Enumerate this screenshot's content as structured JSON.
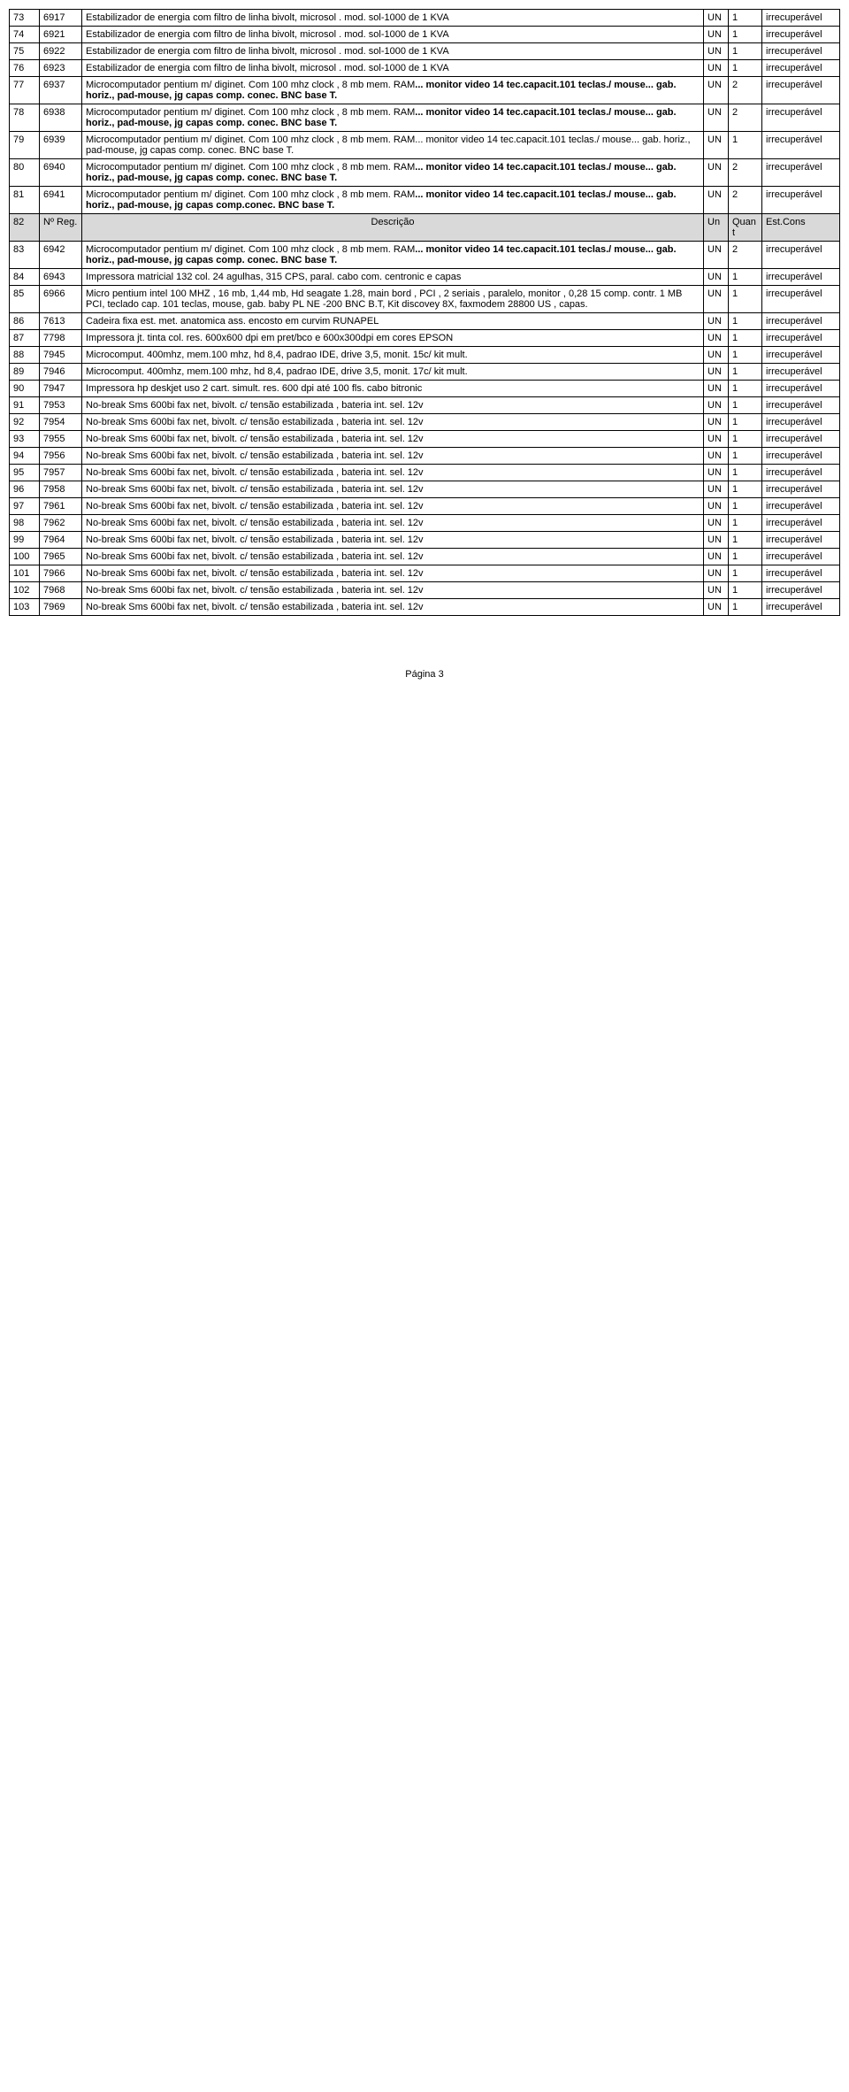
{
  "colors": {
    "header_bg": "#d9d9d9",
    "border": "#000000",
    "text": "#000000",
    "bg": "#ffffff"
  },
  "header": {
    "c1": "82",
    "c2": "Nº Reg.",
    "c3": "Descrição",
    "c4": "Un",
    "c5": "Quant",
    "c6": "Est.Cons"
  },
  "rows": [
    {
      "n": "73",
      "reg": "6917",
      "desc": "Estabilizador de energia com filtro de linha bivolt, microsol . mod. sol-1000 de 1 KVA",
      "un": "UN",
      "qt": "1",
      "est": "irrecuperável"
    },
    {
      "n": "74",
      "reg": "6921",
      "desc": "Estabilizador de energia com filtro de linha bivolt, microsol . mod. sol-1000 de 1 KVA",
      "un": "UN",
      "qt": "1",
      "est": "irrecuperável"
    },
    {
      "n": "75",
      "reg": "6922",
      "desc": "Estabilizador de energia com filtro de linha bivolt, microsol . mod. sol-1000 de 1 KVA",
      "un": "UN",
      "qt": "1",
      "est": "irrecuperável"
    },
    {
      "n": "76",
      "reg": "6923",
      "desc": "Estabilizador de energia com filtro de linha bivolt, microsol . mod. sol-1000 de 1 KVA",
      "un": "UN",
      "qt": "1",
      "est": "irrecuperável"
    },
    {
      "n": "77",
      "reg": "6937",
      "desc_plain": "Microcomputador pentium m/ diginet. Com 100 mhz clock , 8 mb mem. RAM",
      "desc_bold": "... monitor video 14 tec.capacit.101 teclas./ mouse... gab. horiz., pad-mouse, jg capas comp. conec. BNC base T.",
      "un": "UN",
      "qt": "2",
      "est": "irrecuperável"
    },
    {
      "n": "78",
      "reg": "6938",
      "desc_plain": "Microcomputador pentium m/ diginet. Com 100 mhz clock , 8 mb mem. RAM",
      "desc_bold": "... monitor video 14 tec.capacit.101 teclas./ mouse... gab. horiz., pad-mouse, jg capas comp. conec. BNC base T.",
      "un": "UN",
      "qt": "2",
      "est": "irrecuperável"
    },
    {
      "n": "79",
      "reg": "6939",
      "desc_plain": "Microcomputador pentium m/ diginet. Com 100 mhz clock , 8 mb mem. RAM... monitor video 14 tec.capacit.101 teclas./ mouse... gab. horiz., pad-mouse, jg capas comp. conec. BNC base T.",
      "un": "UN",
      "qt": "1",
      "est": "irrecuperável"
    },
    {
      "n": "80",
      "reg": "6940",
      "desc_plain": "Microcomputador pentium m/ diginet. Com 100 mhz clock , 8 mb mem. RAM",
      "desc_bold": "... monitor video 14 tec.capacit.101 teclas./ mouse... gab. horiz., pad-mouse, jg capas comp. conec. BNC base T.",
      "un": "UN",
      "qt": "2",
      "est": "irrecuperável"
    },
    {
      "n": "81",
      "reg": "6941",
      "desc_plain": "Microcomputador pentium m/ diginet. Com 100 mhz  clock , 8 mb mem. RAM",
      "desc_bold": "... monitor video 14 tec.capacit.101 teclas./ mouse... gab. horiz., pad-mouse, jg capas comp.conec. BNC base T.",
      "un": "UN",
      "qt": "2",
      "est": "irrecuperável"
    },
    {
      "header": true
    },
    {
      "n": "83",
      "reg": "6942",
      "desc_plain": "Microcomputador pentium m/ diginet. Com 100 mhz clock , 8 mb mem. RAM",
      "desc_bold": "... monitor video 14 tec.capacit.101 teclas./ mouse... gab. horiz., pad-mouse, jg capas comp. conec. BNC base T.",
      "un": "UN",
      "qt": "2",
      "est": "irrecuperável"
    },
    {
      "n": "84",
      "reg": "6943",
      "desc": "Impressora matricial 132 col. 24 agulhas, 315 CPS,  paral. cabo com. centronic e capas",
      "un": "UN",
      "qt": "1",
      "est": "irrecuperável"
    },
    {
      "n": "85",
      "reg": "6966",
      "desc": "Micro pentium intel 100 MHZ , 16 mb, 1,44 mb, Hd seagate 1.28, main bord , PCI , 2 seriais , paralelo, monitor , 0,28 15 comp. contr. 1 MB PCI, teclado cap. 101 teclas, mouse, gab. baby PL NE -200 BNC B.T, Kit discovey 8X, faxmodem 28800 US , capas.",
      "un": "UN",
      "qt": "1",
      "est": "irrecuperável"
    },
    {
      "n": "86",
      "reg": "7613",
      "desc": "Cadeira fixa est. met. anatomica ass. encosto em curvim RUNAPEL",
      "un": "UN",
      "qt": "1",
      "est": "irrecuperável"
    },
    {
      "n": "87",
      "reg": "7798",
      "desc": "Impressora jt. tinta col. res. 600x600 dpi em pret/bco e 600x300dpi em cores EPSON",
      "un": "UN",
      "qt": "1",
      "est": "irrecuperável"
    },
    {
      "n": "88",
      "reg": "7945",
      "desc": "Microcomput. 400mhz, mem.100 mhz, hd 8,4, padrao IDE, drive 3,5, monit. 15c/ kit mult.",
      "un": "UN",
      "qt": "1",
      "est": "irrecuperável"
    },
    {
      "n": "89",
      "reg": "7946",
      "desc": "Microcomput. 400mhz, mem.100 mhz, hd 8,4, padrao IDE, drive 3,5, monit. 17c/ kit mult.",
      "un": "UN",
      "qt": "1",
      "est": "irrecuperável"
    },
    {
      "n": "90",
      "reg": "7947",
      "desc": "Impressora hp deskjet uso 2 cart. simult. res. 600 dpi até 100 fls. cabo bitronic",
      "un": "UN",
      "qt": "1",
      "est": "irrecuperável"
    },
    {
      "n": "91",
      "reg": "7953",
      "desc": "No-break Sms 600bi fax net, bivolt.  c/ tensão estabilizada , bateria int. sel. 12v",
      "un": "UN",
      "qt": "1",
      "est": "irrecuperável"
    },
    {
      "n": "92",
      "reg": "7954",
      "desc": "No-break Sms 600bi fax net, bivolt.  c/ tensão estabilizada , bateria int. sel. 12v",
      "un": "UN",
      "qt": "1",
      "est": "irrecuperável"
    },
    {
      "n": "93",
      "reg": "7955",
      "desc": "No-break Sms 600bi fax net, bivolt.  c/ tensão estabilizada , bateria int. sel. 12v",
      "un": "UN",
      "qt": "1",
      "est": "irrecuperável"
    },
    {
      "n": "94",
      "reg": "7956",
      "desc": "No-break Sms 600bi fax net, bivolt.  c/ tensão estabilizada , bateria int. sel. 12v",
      "un": "UN",
      "qt": "1",
      "est": "irrecuperável"
    },
    {
      "n": "95",
      "reg": "7957",
      "desc": "No-break Sms 600bi fax net, bivolt.  c/ tensão estabilizada , bateria int. sel. 12v",
      "un": "UN",
      "qt": "1",
      "est": "irrecuperável"
    },
    {
      "n": "96",
      "reg": "7958",
      "desc": "No-break Sms 600bi fax net, bivolt.  c/ tensão estabilizada , bateria int. sel. 12v",
      "un": "UN",
      "qt": "1",
      "est": "irrecuperável"
    },
    {
      "n": "97",
      "reg": "7961",
      "desc": "No-break Sms 600bi fax net, bivolt.  c/ tensão estabilizada , bateria int. sel. 12v",
      "un": "UN",
      "qt": "1",
      "est": "irrecuperável"
    },
    {
      "n": "98",
      "reg": "7962",
      "desc": "No-break Sms 600bi fax net, bivolt.  c/ tensão estabilizada , bateria int. sel. 12v",
      "un": "UN",
      "qt": "1",
      "est": "irrecuperável"
    },
    {
      "n": "99",
      "reg": "7964",
      "desc": "No-break Sms 600bi fax net, bivolt.  c/ tensão estabilizada , bateria int. sel. 12v",
      "un": "UN",
      "qt": "1",
      "est": "irrecuperável"
    },
    {
      "n": "100",
      "reg": "7965",
      "desc": "No-break Sms 600bi fax net, bivolt.  c/ tensão estabilizada , bateria int. sel. 12v",
      "un": "UN",
      "qt": "1",
      "est": "irrecuperável"
    },
    {
      "n": "101",
      "reg": "7966",
      "desc": "No-break Sms 600bi fax net, bivolt.  c/ tensão estabilizada , bateria int. sel. 12v",
      "un": "UN",
      "qt": "1",
      "est": "irrecuperável"
    },
    {
      "n": "102",
      "reg": "7968",
      "desc": "No-break Sms 600bi fax net, bivolt.  c/ tensão estabilizada , bateria int. sel. 12v",
      "un": "UN",
      "qt": "1",
      "est": "irrecuperável"
    },
    {
      "n": "103",
      "reg": "7969",
      "desc": "No-break Sms 600bi fax net, bivolt.  c/ tensão estabilizada , bateria int. sel. 12v",
      "un": "UN",
      "qt": "1",
      "est": "irrecuperável"
    }
  ],
  "footer": "Página 3"
}
